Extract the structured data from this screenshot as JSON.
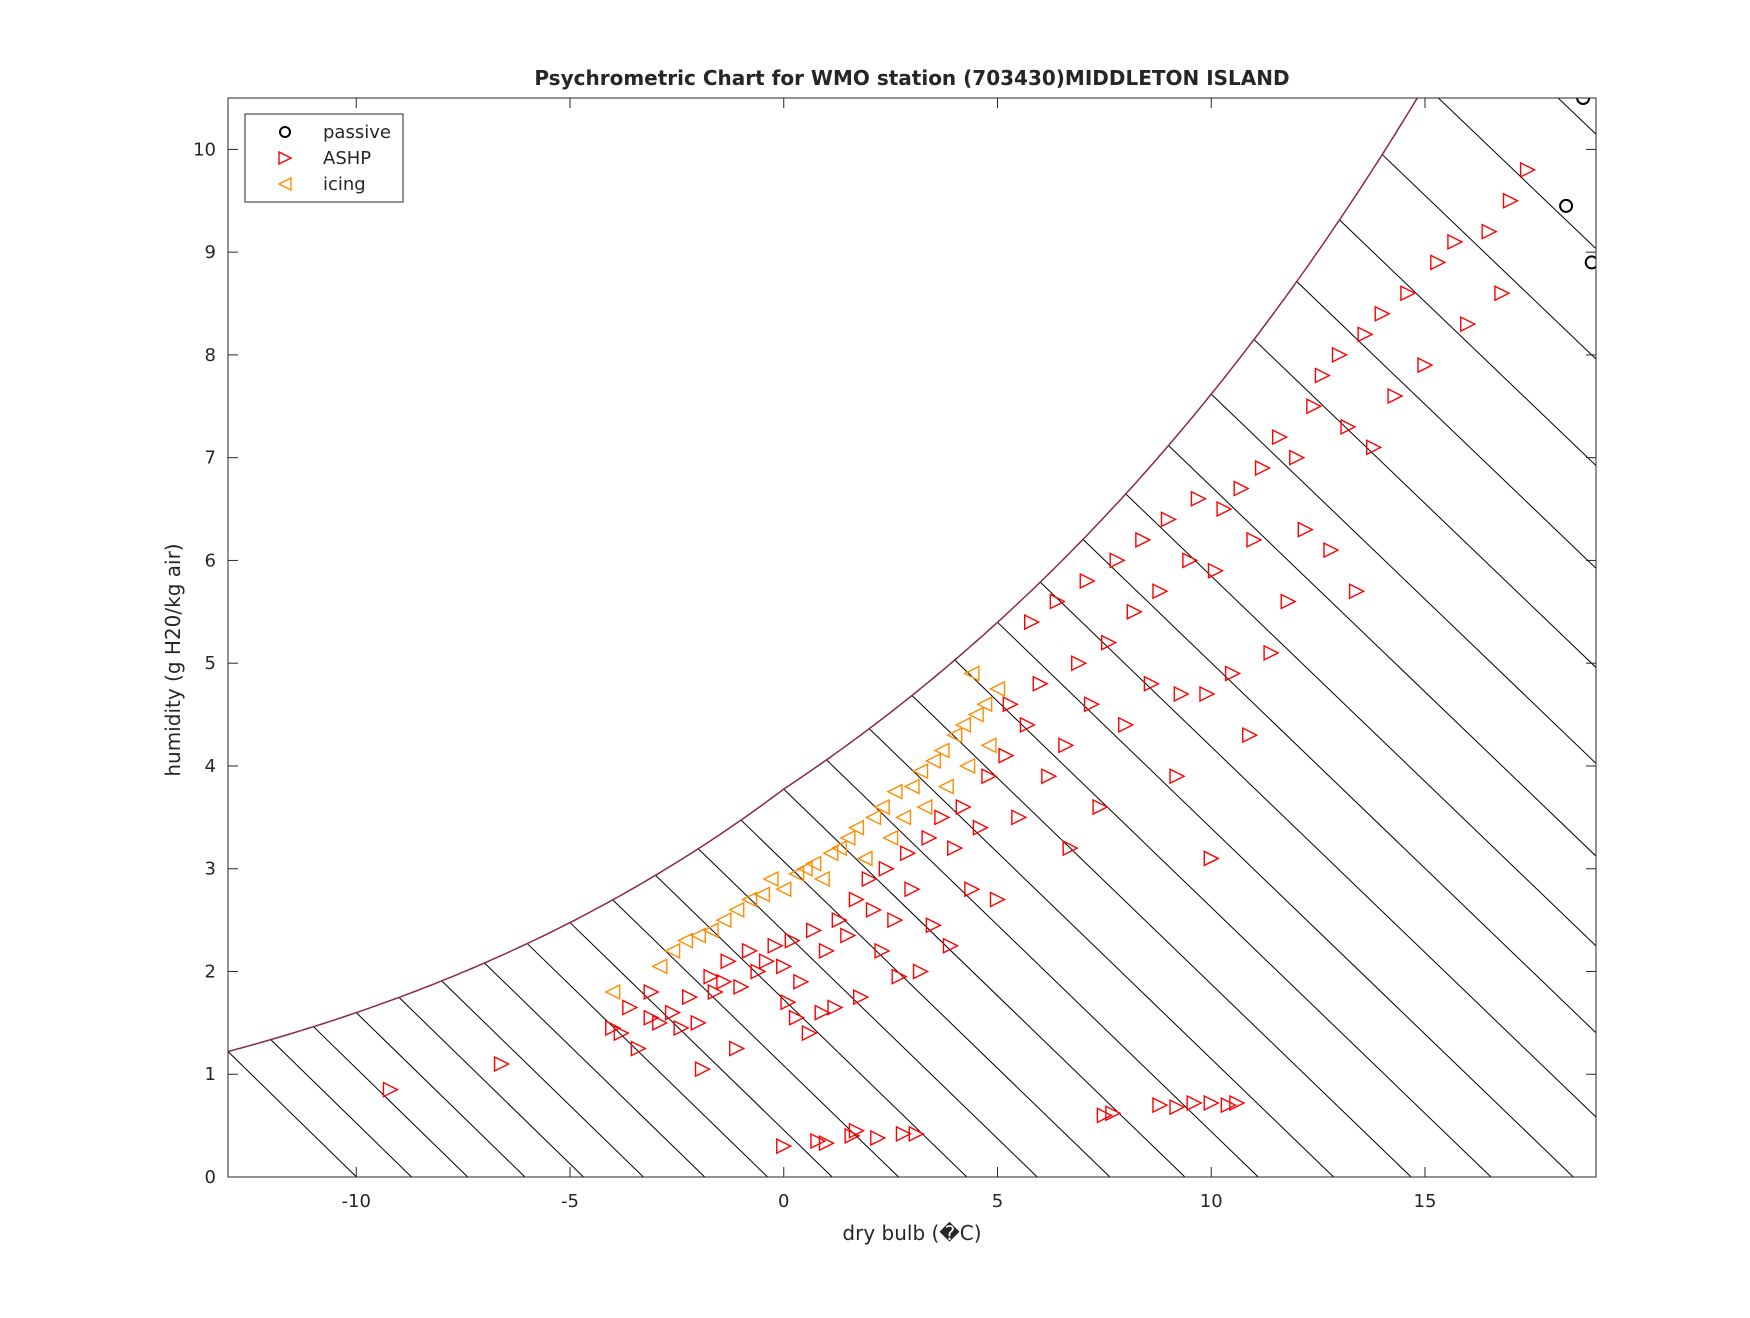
{
  "chart_data": {
    "type": "scatter",
    "title": "Psychrometric Chart for WMO station (703430)MIDDLETON ISLAND",
    "xlabel": "dry bulb (�C)",
    "ylabel": "humidity (g H20/kg air)",
    "xlim": [
      -13,
      19
    ],
    "ylim": [
      0,
      10.5
    ],
    "xticks": [
      -10,
      -5,
      0,
      5,
      10,
      15
    ],
    "yticks": [
      0,
      1,
      2,
      3,
      4,
      5,
      6,
      7,
      8,
      9,
      10
    ],
    "xtick_labels": [
      "-10",
      "-5",
      "0",
      "5",
      "10",
      "15"
    ],
    "ytick_labels": [
      "0",
      "1",
      "2",
      "3",
      "4",
      "5",
      "6",
      "7",
      "8",
      "9",
      "10"
    ],
    "grid": false,
    "legend_position": "top-left",
    "saturation_curve_color": "#8b2a3a",
    "enthalpy_line_color": "#000000",
    "enthalpy_lines": "diagonal constant-enthalpy lines spaced every 1 °C of wet-bulb from -13 to 19",
    "series": [
      {
        "name": "passive",
        "marker": "circle",
        "color": "#000000",
        "points": [
          [
            18.7,
            10.5
          ],
          [
            18.3,
            9.45
          ],
          [
            18.9,
            8.9
          ]
        ]
      },
      {
        "name": "ASHP",
        "marker": "triangle-right",
        "color": "#ff0000",
        "points": [
          [
            -9.2,
            0.85
          ],
          [
            -6.6,
            1.1
          ],
          [
            -4.0,
            1.45
          ],
          [
            -3.8,
            1.4
          ],
          [
            -3.6,
            1.65
          ],
          [
            -3.4,
            1.25
          ],
          [
            -3.1,
            1.8
          ],
          [
            -3.1,
            1.55
          ],
          [
            -2.9,
            1.5
          ],
          [
            -2.6,
            1.6
          ],
          [
            -2.4,
            1.45
          ],
          [
            -2.2,
            1.75
          ],
          [
            -2.0,
            1.5
          ],
          [
            -1.9,
            1.05
          ],
          [
            -1.7,
            1.95
          ],
          [
            -1.6,
            1.8
          ],
          [
            -1.4,
            1.9
          ],
          [
            -1.3,
            2.1
          ],
          [
            -1.1,
            1.25
          ],
          [
            -1.0,
            1.85
          ],
          [
            -0.8,
            2.2
          ],
          [
            -0.6,
            2.0
          ],
          [
            -0.4,
            2.1
          ],
          [
            -0.2,
            2.25
          ],
          [
            0.0,
            2.05
          ],
          [
            0.1,
            1.7
          ],
          [
            0.2,
            2.3
          ],
          [
            0.3,
            1.55
          ],
          [
            0.4,
            1.9
          ],
          [
            0.6,
            1.4
          ],
          [
            0.7,
            2.4
          ],
          [
            0.9,
            1.6
          ],
          [
            1.0,
            2.2
          ],
          [
            1.2,
            1.65
          ],
          [
            1.3,
            2.5
          ],
          [
            1.5,
            2.35
          ],
          [
            1.7,
            2.7
          ],
          [
            1.8,
            1.75
          ],
          [
            2.0,
            2.9
          ],
          [
            2.1,
            2.6
          ],
          [
            2.3,
            2.2
          ],
          [
            2.4,
            3.0
          ],
          [
            2.6,
            2.5
          ],
          [
            2.7,
            1.95
          ],
          [
            2.9,
            3.15
          ],
          [
            3.0,
            2.8
          ],
          [
            3.2,
            2.0
          ],
          [
            3.4,
            3.3
          ],
          [
            3.5,
            2.45
          ],
          [
            3.7,
            3.5
          ],
          [
            3.9,
            2.25
          ],
          [
            4.0,
            3.2
          ],
          [
            4.2,
            3.6
          ],
          [
            4.4,
            2.8
          ],
          [
            4.6,
            3.4
          ],
          [
            4.8,
            3.9
          ],
          [
            5.0,
            2.7
          ],
          [
            5.2,
            4.1
          ],
          [
            5.3,
            4.6
          ],
          [
            5.5,
            3.5
          ],
          [
            5.7,
            4.4
          ],
          [
            5.8,
            5.4
          ],
          [
            6.0,
            4.8
          ],
          [
            6.2,
            3.9
          ],
          [
            6.4,
            5.6
          ],
          [
            6.6,
            4.2
          ],
          [
            6.7,
            3.2
          ],
          [
            6.9,
            5.0
          ],
          [
            7.1,
            5.8
          ],
          [
            7.2,
            4.6
          ],
          [
            7.4,
            3.6
          ],
          [
            7.6,
            5.2
          ],
          [
            7.8,
            6.0
          ],
          [
            8.0,
            4.4
          ],
          [
            8.2,
            5.5
          ],
          [
            8.4,
            6.2
          ],
          [
            8.6,
            4.8
          ],
          [
            8.8,
            5.7
          ],
          [
            9.0,
            6.4
          ],
          [
            9.2,
            3.9
          ],
          [
            9.3,
            4.7
          ],
          [
            9.5,
            6.0
          ],
          [
            9.7,
            6.6
          ],
          [
            9.9,
            4.7
          ],
          [
            10.0,
            3.1
          ],
          [
            10.1,
            5.9
          ],
          [
            10.3,
            6.5
          ],
          [
            10.5,
            4.9
          ],
          [
            10.7,
            6.7
          ],
          [
            10.9,
            4.3
          ],
          [
            11.0,
            6.2
          ],
          [
            11.2,
            6.9
          ],
          [
            11.4,
            5.1
          ],
          [
            11.6,
            7.2
          ],
          [
            11.8,
            5.6
          ],
          [
            12.0,
            7.0
          ],
          [
            12.2,
            6.3
          ],
          [
            12.4,
            7.5
          ],
          [
            12.6,
            7.8
          ],
          [
            12.8,
            6.1
          ],
          [
            13.0,
            8.0
          ],
          [
            13.2,
            7.3
          ],
          [
            13.4,
            5.7
          ],
          [
            13.6,
            8.2
          ],
          [
            13.8,
            7.1
          ],
          [
            14.0,
            8.4
          ],
          [
            14.3,
            7.6
          ],
          [
            14.6,
            8.6
          ],
          [
            15.0,
            7.9
          ],
          [
            15.3,
            8.9
          ],
          [
            15.7,
            9.1
          ],
          [
            16.0,
            8.3
          ],
          [
            16.5,
            9.2
          ],
          [
            16.8,
            8.6
          ],
          [
            17.0,
            9.5
          ],
          [
            17.4,
            9.8
          ],
          [
            0.0,
            0.3
          ],
          [
            0.8,
            0.35
          ],
          [
            1.0,
            0.33
          ],
          [
            1.6,
            0.4
          ],
          [
            1.7,
            0.45
          ],
          [
            2.2,
            0.38
          ],
          [
            2.8,
            0.42
          ],
          [
            3.1,
            0.42
          ],
          [
            7.5,
            0.6
          ],
          [
            7.7,
            0.62
          ],
          [
            8.8,
            0.7
          ],
          [
            9.2,
            0.68
          ],
          [
            9.6,
            0.72
          ],
          [
            10.0,
            0.72
          ],
          [
            10.4,
            0.7
          ],
          [
            10.6,
            0.72
          ]
        ]
      },
      {
        "name": "icing",
        "marker": "triangle-left",
        "color": "#ff8c00",
        "points": [
          [
            -4.0,
            1.8
          ],
          [
            -2.9,
            2.05
          ],
          [
            -2.6,
            2.2
          ],
          [
            -2.3,
            2.3
          ],
          [
            -2.0,
            2.35
          ],
          [
            -1.7,
            2.4
          ],
          [
            -1.4,
            2.5
          ],
          [
            -1.1,
            2.6
          ],
          [
            -0.8,
            2.7
          ],
          [
            -0.5,
            2.75
          ],
          [
            -0.3,
            2.9
          ],
          [
            0.0,
            2.8
          ],
          [
            0.3,
            2.95
          ],
          [
            0.5,
            3.0
          ],
          [
            0.7,
            3.05
          ],
          [
            0.9,
            2.9
          ],
          [
            1.1,
            3.15
          ],
          [
            1.3,
            3.2
          ],
          [
            1.5,
            3.3
          ],
          [
            1.7,
            3.4
          ],
          [
            1.9,
            3.1
          ],
          [
            2.1,
            3.5
          ],
          [
            2.3,
            3.6
          ],
          [
            2.5,
            3.3
          ],
          [
            2.6,
            3.75
          ],
          [
            2.8,
            3.5
          ],
          [
            3.0,
            3.8
          ],
          [
            3.2,
            3.95
          ],
          [
            3.3,
            3.6
          ],
          [
            3.5,
            4.05
          ],
          [
            3.7,
            4.15
          ],
          [
            3.8,
            3.8
          ],
          [
            4.0,
            4.3
          ],
          [
            4.2,
            4.4
          ],
          [
            4.3,
            4.0
          ],
          [
            4.5,
            4.5
          ],
          [
            4.7,
            4.6
          ],
          [
            4.8,
            4.2
          ],
          [
            5.0,
            4.75
          ],
          [
            4.4,
            4.9
          ]
        ]
      }
    ]
  }
}
